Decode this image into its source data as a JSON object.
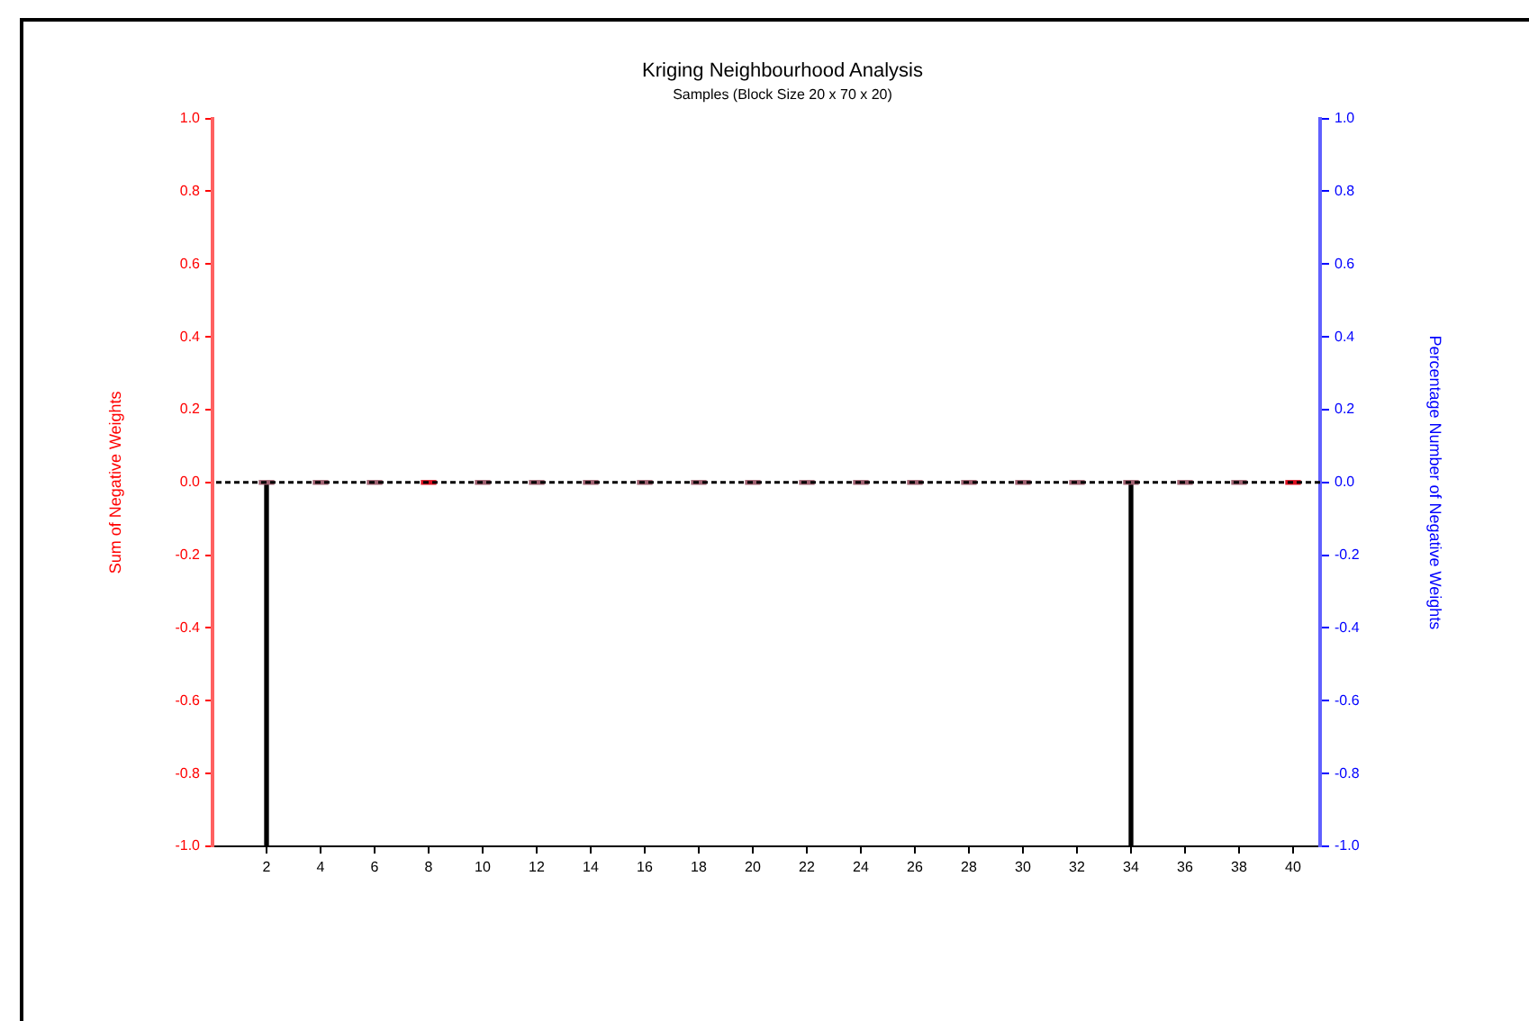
{
  "chart_data": {
    "type": "bar",
    "title": "Kriging Neighbourhood Analysis",
    "subtitle": "Samples (Block Size 20 x 70 x 20)",
    "ylabel": "Sum of Negative Weights",
    "y2label": "Percentage Number of Negative Weights",
    "xlim": [
      0,
      41
    ],
    "xticks": [
      2,
      4,
      6,
      8,
      10,
      12,
      14,
      16,
      18,
      20,
      22,
      24,
      26,
      28,
      30,
      32,
      34,
      36,
      38,
      40
    ],
    "ylim": [
      -1,
      1
    ],
    "yticks": [
      {
        "value": -1,
        "label": "-1.0"
      },
      -0.8,
      -0.6,
      -0.4,
      -0.2,
      {
        "value": 0,
        "label": "0.0"
      },
      0.2,
      0.4,
      0.6,
      0.8,
      {
        "value": 1,
        "label": "1.0"
      }
    ],
    "y2lim": [
      -1,
      1
    ],
    "y2ticks": [
      {
        "value": -1,
        "label": "-1.0"
      },
      -0.8,
      -0.6,
      -0.4,
      -0.2,
      {
        "value": 0,
        "label": "0.0"
      },
      0.2,
      0.4,
      0.6,
      0.8,
      {
        "value": 1,
        "label": "1.0"
      }
    ],
    "series": [
      {
        "x": [
          2,
          4,
          6,
          8,
          10,
          12,
          14,
          16,
          18,
          20,
          22,
          24,
          26,
          28,
          30,
          32,
          34,
          36,
          38,
          40
        ],
        "values": [
          0,
          0,
          0,
          0,
          0,
          0,
          0,
          0,
          0,
          0,
          0,
          0,
          0,
          0,
          0,
          0,
          0,
          0,
          0,
          0
        ],
        "colors": [
          "#a06070",
          "#a06070",
          "#a06070",
          "#dd1020",
          "#a06070",
          "#a06070",
          "#a06070",
          "#a06070",
          "#a06070",
          "#a06070",
          "#a06070",
          "#a06070",
          "#a06070",
          "#a06070",
          "#a06070",
          "#a06070",
          "#a06070",
          "#a06070",
          "#a06070",
          "#dd1020"
        ]
      },
      {
        "x": [
          2,
          34
        ],
        "values": [
          -1,
          -1
        ],
        "color": "#000000"
      }
    ],
    "ref_lines": [
      {
        "axis": "y2",
        "value": 0,
        "color": "#000000",
        "line_style": "dashed"
      }
    ],
    "grid": false,
    "legend": false
  }
}
